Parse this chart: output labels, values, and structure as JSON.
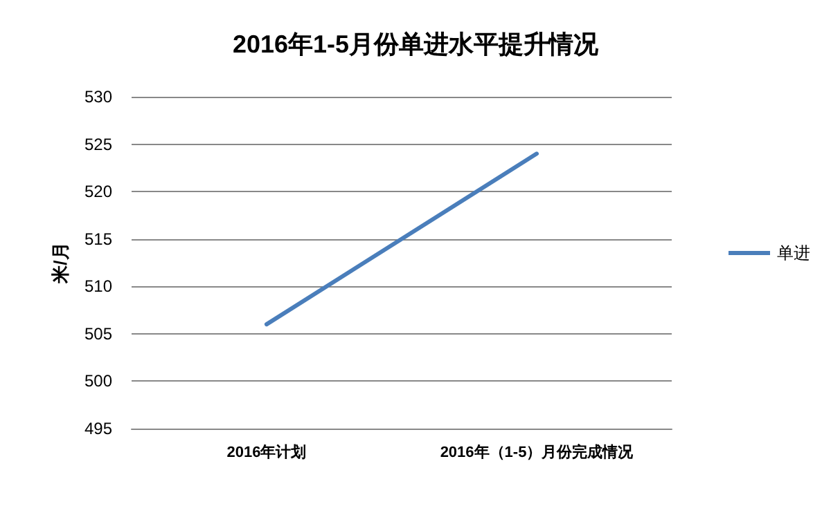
{
  "chart_data": {
    "type": "line",
    "title": "2016年1-5月份单进水平提升情况",
    "ylabel": "米/月",
    "categories": [
      "2016年计划",
      "2016年（1-5）月份完成情况"
    ],
    "series": [
      {
        "name": "单进",
        "color": "#4a7ebb",
        "values": [
          506,
          524
        ]
      }
    ],
    "ylim": [
      495,
      530
    ],
    "yticks": [
      495,
      500,
      505,
      510,
      515,
      520,
      525,
      530
    ],
    "grid": "y",
    "legend": "right",
    "marker": "none",
    "line_style": "solid"
  }
}
